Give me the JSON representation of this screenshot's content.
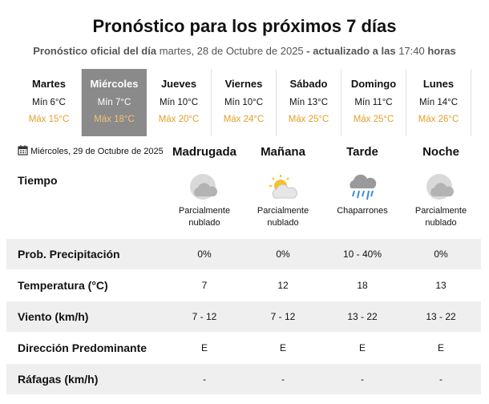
{
  "header": {
    "title": "Pronóstico para los próximos 7 días",
    "subtitle": {
      "label": "Pronóstico oficial del día",
      "date": "martes, 28 de Octubre de 2025",
      "updated_label": "- actualizado a las",
      "time": "17:40",
      "time_unit": "horas"
    }
  },
  "days": [
    {
      "name": "Martes",
      "min": "Mín 6°C",
      "max": "Máx 15°C"
    },
    {
      "name": "Miércoles",
      "min": "Mín 7°C",
      "max": "Máx 18°C",
      "selected": true
    },
    {
      "name": "Jueves",
      "min": "Mín 10°C",
      "max": "Máx 20°C"
    },
    {
      "name": "Viernes",
      "min": "Mín 10°C",
      "max": "Máx 24°C"
    },
    {
      "name": "Sábado",
      "min": "Mín 13°C",
      "max": "Máx 25°C"
    },
    {
      "name": "Domingo",
      "min": "Mín 11°C",
      "max": "Máx 25°C"
    },
    {
      "name": "Lunes",
      "min": "Mín 14°C",
      "max": "Máx 26°C"
    }
  ],
  "forecast": {
    "date": "Miércoles, 29 de Octubre de 2025",
    "periods": [
      "Madrugada",
      "Mañana",
      "Tarde",
      "Noche"
    ],
    "sky": {
      "label": "Tiempo",
      "descriptions": [
        "Parcialmente nublado",
        "Parcialmente nublado",
        "Chaparrones",
        "Parcialmente nublado"
      ]
    },
    "rows": [
      {
        "label": "Prob. Precipitación",
        "values": [
          "0%",
          "0%",
          "10 - 40%",
          "0%"
        ]
      },
      {
        "label": "Temperatura (°C)",
        "values": [
          "7",
          "12",
          "18",
          "13"
        ]
      },
      {
        "label": "Viento (km/h)",
        "values": [
          "7 - 12",
          "7 - 12",
          "13 - 22",
          "13 - 22"
        ]
      },
      {
        "label": "Dirección Predominante",
        "values": [
          "E",
          "E",
          "E",
          "E"
        ]
      },
      {
        "label": "Ráfagas (km/h)",
        "values": [
          "-",
          "-",
          "-",
          "-"
        ]
      }
    ]
  }
}
